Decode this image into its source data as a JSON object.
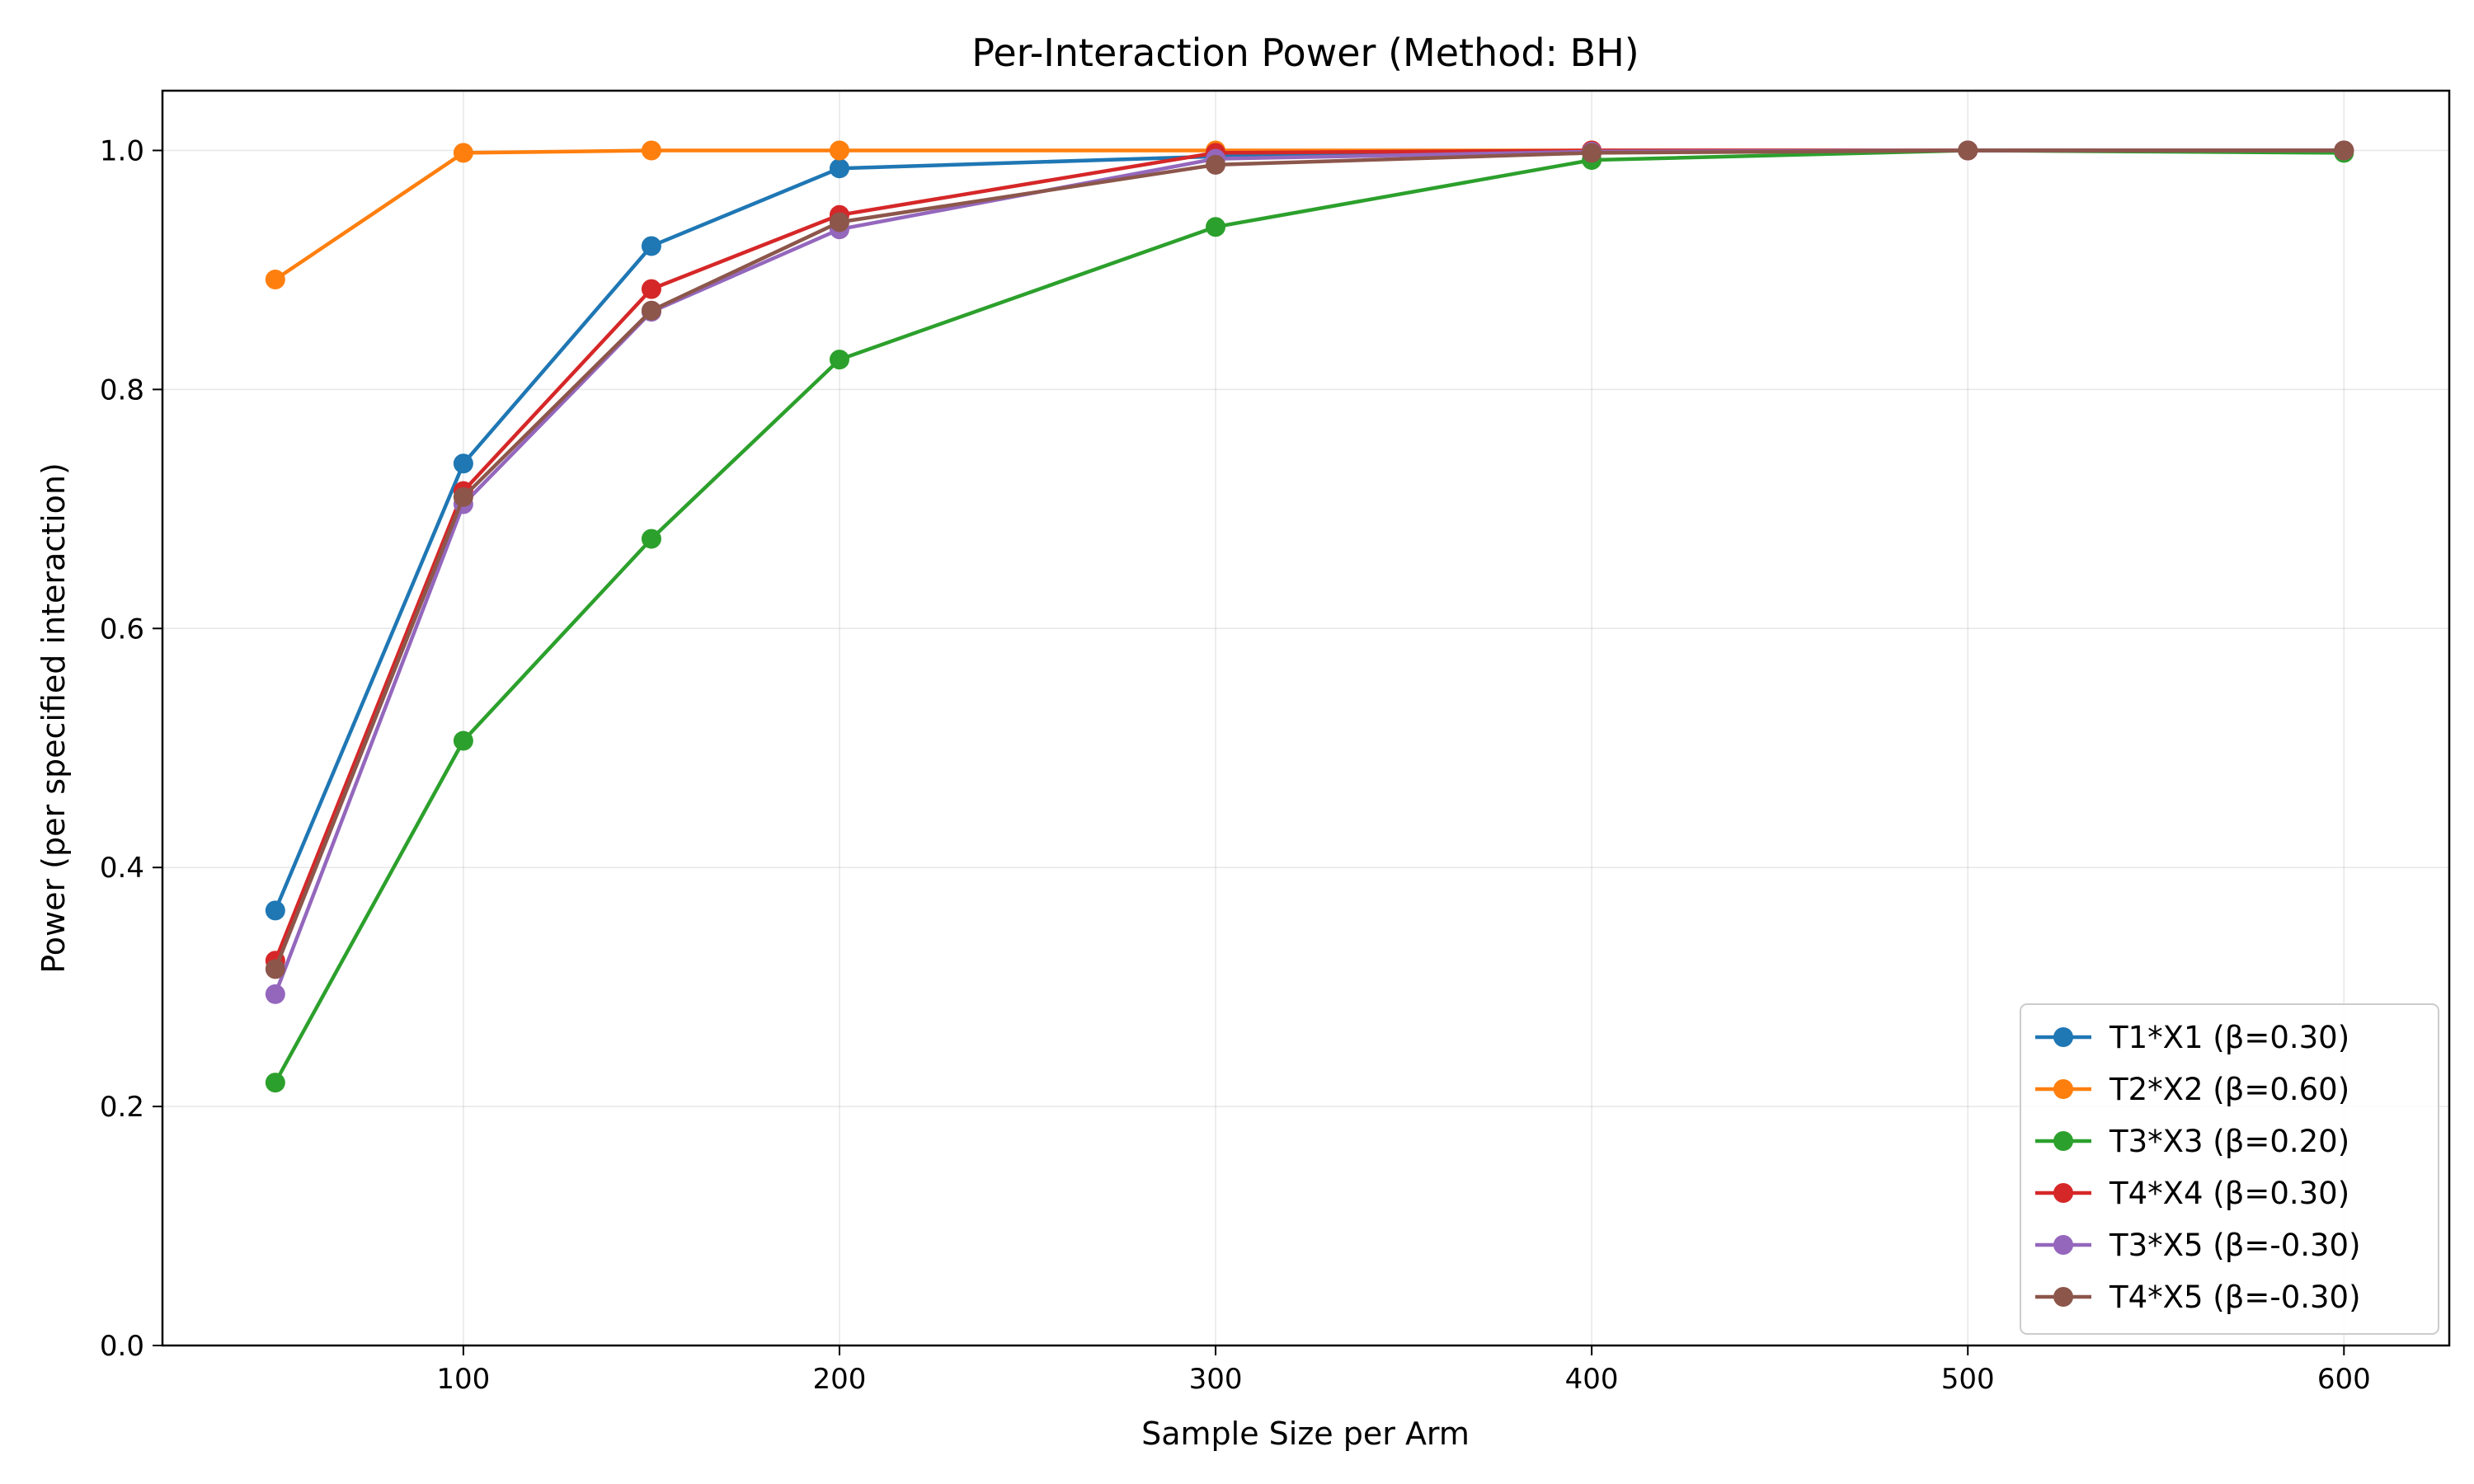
{
  "chart_data": {
    "type": "line",
    "title": "Per-Interaction Power (Method: BH)",
    "xlabel": "Sample Size per Arm",
    "ylabel": "Power (per specified interaction)",
    "xlim": [
      20,
      628
    ],
    "ylim": [
      0.0,
      1.05
    ],
    "xticks": [
      100,
      200,
      300,
      400,
      500,
      600
    ],
    "yticks": [
      0.0,
      0.2,
      0.4,
      0.6,
      0.8,
      1.0
    ],
    "xtick_labels": [
      "100",
      "200",
      "300",
      "400",
      "500",
      "600"
    ],
    "ytick_labels": [
      "0.0",
      "0.2",
      "0.4",
      "0.6",
      "0.8",
      "1.0"
    ],
    "grid": true,
    "legend_position": "lower-right",
    "x": [
      50,
      100,
      150,
      200,
      300,
      400,
      500,
      600
    ],
    "series": [
      {
        "name": "T1*X1 (β=0.30)",
        "color": "#1f77b4",
        "values": [
          0.364,
          0.738,
          0.92,
          0.985,
          0.995,
          1.0,
          1.0,
          1.0
        ]
      },
      {
        "name": "T2*X2 (β=0.60)",
        "color": "#ff7f0e",
        "values": [
          0.892,
          0.998,
          1.0,
          1.0,
          1.0,
          1.0,
          1.0,
          1.0
        ]
      },
      {
        "name": "T3*X3 (β=0.20)",
        "color": "#2ca02c",
        "values": [
          0.22,
          0.506,
          0.675,
          0.825,
          0.936,
          0.992,
          1.0,
          0.998
        ]
      },
      {
        "name": "T4*X4 (β=0.30)",
        "color": "#d62728",
        "values": [
          0.322,
          0.715,
          0.884,
          0.946,
          0.998,
          1.0,
          1.0,
          1.0
        ]
      },
      {
        "name": "T3*X5 (β=-0.30)",
        "color": "#9467bd",
        "values": [
          0.294,
          0.704,
          0.865,
          0.934,
          0.993,
          0.999,
          1.0,
          1.0
        ]
      },
      {
        "name": "T4*X5 (β=-0.30)",
        "color": "#8c564b",
        "values": [
          0.315,
          0.71,
          0.866,
          0.94,
          0.988,
          0.998,
          1.0,
          1.0
        ]
      }
    ]
  }
}
